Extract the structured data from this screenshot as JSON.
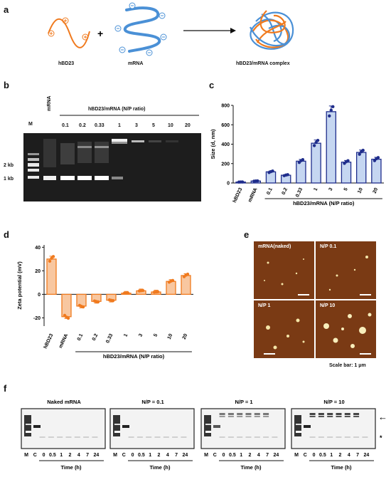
{
  "panels": {
    "a": {
      "letter": "a",
      "hbd23": "hBD23",
      "mrna": "mRNA",
      "complex": "hBD23/mRNA complex",
      "plus": "+"
    },
    "b": {
      "letter": "b",
      "title": "hBD23/mRNA (N/P ratio)",
      "marker": "M",
      "mrna_lane": "mRNA",
      "lanes": [
        "0.1",
        "0.2",
        "0.33",
        "1",
        "3",
        "5",
        "10",
        "20"
      ],
      "size_2kb": "2 kb",
      "size_1kb": "1 kb"
    },
    "c": {
      "letter": "c"
    },
    "d": {
      "letter": "d"
    },
    "e": {
      "letter": "e",
      "tiles": [
        "mRNA(naked)",
        "N/P 0.1",
        "N/P 1",
        "N/P 10"
      ],
      "scale": "Scale bar: 1 μm"
    },
    "f": {
      "letter": "f",
      "titles": [
        "Naked mRNA",
        "N/P = 0.1",
        "N/P = 1",
        "N/P = 10"
      ],
      "lanes": [
        "M",
        "C",
        "0",
        "0.5",
        "1",
        "2",
        "4",
        "7",
        "24"
      ],
      "xlabel": "Time (h)",
      "arrow": "←",
      "star": "*"
    }
  },
  "chart_data": [
    {
      "type": "bar",
      "ylabel": "Size (d, nm)",
      "group_label": "hBD23/mRNA (N/P ratio)",
      "categories": [
        "hBD23",
        "mRNA",
        "0.1",
        "0.2",
        "0.33",
        "1",
        "3",
        "5",
        "10",
        "20"
      ],
      "values": [
        10,
        20,
        115,
        80,
        225,
        410,
        735,
        215,
        315,
        245
      ],
      "yticks": [
        "0",
        "200",
        "400",
        "600",
        "800"
      ],
      "ylim": [
        0,
        800
      ],
      "colors": {
        "fill": "#c5d6f1",
        "stroke": "#1f2d8c"
      }
    },
    {
      "type": "bar",
      "ylabel": "Zeta potential (mV)",
      "group_label": "hBD23/mRNA (N/P ratio)",
      "categories": [
        "hBD23",
        "mRNA",
        "0.1",
        "0.2",
        "0.33",
        "1",
        "3",
        "5",
        "10",
        "20"
      ],
      "values": [
        30,
        -19,
        -10,
        -6,
        -5,
        1,
        3,
        2,
        11,
        16
      ],
      "yticks": [
        "-20",
        "0",
        "20",
        "40"
      ],
      "ylim": [
        -27,
        42
      ],
      "colors": {
        "fill": "#f8c7a0",
        "stroke": "#f07a1e"
      }
    }
  ]
}
